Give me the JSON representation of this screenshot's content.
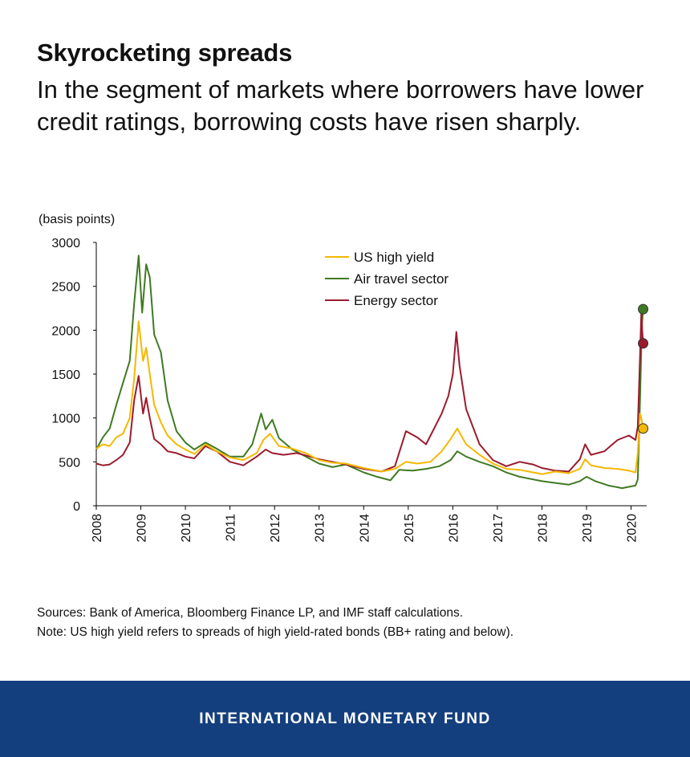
{
  "header": {
    "title": "Skyrocketing spreads",
    "subtitle": "In the segment of markets where borrowers have lower credit ratings, borrowing costs have risen sharply."
  },
  "chart_data": {
    "type": "line",
    "ylabel": "(basis points)",
    "xlabel": "",
    "ylim": [
      0,
      3000
    ],
    "yticks": [
      "0",
      "500",
      "1000",
      "1500",
      "2000",
      "2500",
      "3000"
    ],
    "xlim": [
      2008.0,
      2020.35
    ],
    "xticks": [
      "2008",
      "2009",
      "2010",
      "2011",
      "2012",
      "2013",
      "2014",
      "2015",
      "2016",
      "2017",
      "2018",
      "2019",
      "2020"
    ],
    "grid": false,
    "legend_position": "top-center",
    "series": [
      {
        "name": "US high yield",
        "color": "#f5b800",
        "end_marker": true,
        "points": [
          [
            2008.0,
            650
          ],
          [
            2008.15,
            700
          ],
          [
            2008.3,
            680
          ],
          [
            2008.45,
            780
          ],
          [
            2008.6,
            820
          ],
          [
            2008.75,
            1000
          ],
          [
            2008.85,
            1450
          ],
          [
            2008.95,
            2100
          ],
          [
            2009.05,
            1650
          ],
          [
            2009.12,
            1800
          ],
          [
            2009.2,
            1500
          ],
          [
            2009.3,
            1150
          ],
          [
            2009.45,
            950
          ],
          [
            2009.6,
            800
          ],
          [
            2009.8,
            700
          ],
          [
            2010.0,
            640
          ],
          [
            2010.2,
            590
          ],
          [
            2010.45,
            700
          ],
          [
            2010.7,
            620
          ],
          [
            2011.0,
            550
          ],
          [
            2011.3,
            520
          ],
          [
            2011.6,
            600
          ],
          [
            2011.75,
            750
          ],
          [
            2011.9,
            820
          ],
          [
            2012.1,
            680
          ],
          [
            2012.4,
            650
          ],
          [
            2012.7,
            600
          ],
          [
            2013.0,
            520
          ],
          [
            2013.3,
            490
          ],
          [
            2013.6,
            480
          ],
          [
            2014.0,
            430
          ],
          [
            2014.4,
            390
          ],
          [
            2014.7,
            420
          ],
          [
            2014.95,
            500
          ],
          [
            2015.2,
            480
          ],
          [
            2015.5,
            500
          ],
          [
            2015.75,
            620
          ],
          [
            2015.95,
            760
          ],
          [
            2016.1,
            880
          ],
          [
            2016.3,
            700
          ],
          [
            2016.6,
            580
          ],
          [
            2016.9,
            480
          ],
          [
            2017.2,
            420
          ],
          [
            2017.5,
            410
          ],
          [
            2017.8,
            380
          ],
          [
            2018.0,
            360
          ],
          [
            2018.3,
            390
          ],
          [
            2018.6,
            370
          ],
          [
            2018.85,
            420
          ],
          [
            2018.97,
            530
          ],
          [
            2019.1,
            460
          ],
          [
            2019.4,
            430
          ],
          [
            2019.7,
            420
          ],
          [
            2019.95,
            400
          ],
          [
            2020.1,
            380
          ],
          [
            2020.15,
            600
          ],
          [
            2020.2,
            1050
          ],
          [
            2020.23,
            1000
          ],
          [
            2020.27,
            880
          ]
        ]
      },
      {
        "name": "Air travel sector",
        "color": "#3f7a22",
        "end_marker": true,
        "points": [
          [
            2008.0,
            640
          ],
          [
            2008.15,
            780
          ],
          [
            2008.3,
            880
          ],
          [
            2008.45,
            1150
          ],
          [
            2008.6,
            1400
          ],
          [
            2008.75,
            1650
          ],
          [
            2008.85,
            2300
          ],
          [
            2008.95,
            2850
          ],
          [
            2009.03,
            2200
          ],
          [
            2009.12,
            2750
          ],
          [
            2009.2,
            2600
          ],
          [
            2009.3,
            1950
          ],
          [
            2009.45,
            1750
          ],
          [
            2009.6,
            1200
          ],
          [
            2009.8,
            850
          ],
          [
            2010.0,
            720
          ],
          [
            2010.2,
            640
          ],
          [
            2010.45,
            720
          ],
          [
            2010.7,
            650
          ],
          [
            2011.0,
            560
          ],
          [
            2011.3,
            560
          ],
          [
            2011.5,
            700
          ],
          [
            2011.7,
            1050
          ],
          [
            2011.8,
            870
          ],
          [
            2011.95,
            980
          ],
          [
            2012.1,
            770
          ],
          [
            2012.4,
            640
          ],
          [
            2012.7,
            560
          ],
          [
            2013.0,
            480
          ],
          [
            2013.3,
            440
          ],
          [
            2013.6,
            470
          ],
          [
            2014.0,
            380
          ],
          [
            2014.3,
            330
          ],
          [
            2014.6,
            290
          ],
          [
            2014.8,
            410
          ],
          [
            2015.1,
            400
          ],
          [
            2015.4,
            420
          ],
          [
            2015.7,
            450
          ],
          [
            2015.95,
            520
          ],
          [
            2016.1,
            620
          ],
          [
            2016.3,
            560
          ],
          [
            2016.6,
            500
          ],
          [
            2016.9,
            450
          ],
          [
            2017.2,
            380
          ],
          [
            2017.5,
            330
          ],
          [
            2017.8,
            300
          ],
          [
            2018.0,
            280
          ],
          [
            2018.3,
            260
          ],
          [
            2018.6,
            240
          ],
          [
            2018.85,
            280
          ],
          [
            2019.0,
            330
          ],
          [
            2019.2,
            280
          ],
          [
            2019.5,
            230
          ],
          [
            2019.8,
            200
          ],
          [
            2020.0,
            220
          ],
          [
            2020.1,
            230
          ],
          [
            2020.15,
            300
          ],
          [
            2020.2,
            1200
          ],
          [
            2020.23,
            1800
          ],
          [
            2020.25,
            2100
          ],
          [
            2020.27,
            2240
          ]
        ]
      },
      {
        "name": "Energy sector",
        "color": "#9b1b2e",
        "end_marker": true,
        "points": [
          [
            2008.0,
            480
          ],
          [
            2008.15,
            460
          ],
          [
            2008.3,
            470
          ],
          [
            2008.45,
            520
          ],
          [
            2008.6,
            580
          ],
          [
            2008.75,
            720
          ],
          [
            2008.85,
            1200
          ],
          [
            2008.95,
            1480
          ],
          [
            2009.05,
            1050
          ],
          [
            2009.12,
            1230
          ],
          [
            2009.2,
            1000
          ],
          [
            2009.3,
            760
          ],
          [
            2009.45,
            700
          ],
          [
            2009.6,
            620
          ],
          [
            2009.8,
            600
          ],
          [
            2010.0,
            560
          ],
          [
            2010.2,
            540
          ],
          [
            2010.45,
            680
          ],
          [
            2010.7,
            620
          ],
          [
            2011.0,
            500
          ],
          [
            2011.3,
            460
          ],
          [
            2011.6,
            560
          ],
          [
            2011.8,
            640
          ],
          [
            2011.95,
            600
          ],
          [
            2012.2,
            580
          ],
          [
            2012.5,
            600
          ],
          [
            2012.8,
            560
          ],
          [
            2013.0,
            530
          ],
          [
            2013.3,
            500
          ],
          [
            2013.6,
            470
          ],
          [
            2014.0,
            420
          ],
          [
            2014.4,
            390
          ],
          [
            2014.7,
            450
          ],
          [
            2014.95,
            850
          ],
          [
            2015.2,
            780
          ],
          [
            2015.4,
            700
          ],
          [
            2015.6,
            900
          ],
          [
            2015.75,
            1050
          ],
          [
            2015.9,
            1250
          ],
          [
            2016.0,
            1500
          ],
          [
            2016.08,
            1980
          ],
          [
            2016.15,
            1600
          ],
          [
            2016.3,
            1100
          ],
          [
            2016.6,
            700
          ],
          [
            2016.9,
            520
          ],
          [
            2017.2,
            450
          ],
          [
            2017.5,
            500
          ],
          [
            2017.8,
            470
          ],
          [
            2018.0,
            430
          ],
          [
            2018.3,
            400
          ],
          [
            2018.6,
            390
          ],
          [
            2018.85,
            530
          ],
          [
            2018.97,
            700
          ],
          [
            2019.1,
            580
          ],
          [
            2019.4,
            620
          ],
          [
            2019.7,
            750
          ],
          [
            2019.95,
            800
          ],
          [
            2020.1,
            750
          ],
          [
            2020.15,
            900
          ],
          [
            2020.2,
            1700
          ],
          [
            2020.23,
            2200
          ],
          [
            2020.25,
            2000
          ],
          [
            2020.27,
            1850
          ]
        ]
      }
    ]
  },
  "notes": {
    "sources": "Sources: Bank of America, Bloomberg Finance LP, and IMF staff calculations.",
    "note": "Note: US high yield refers to spreads of high yield-rated bonds (BB+ rating and below)."
  },
  "footer": {
    "org_name": "INTERNATIONAL MONETARY FUND",
    "background_color": "#143f7e"
  }
}
